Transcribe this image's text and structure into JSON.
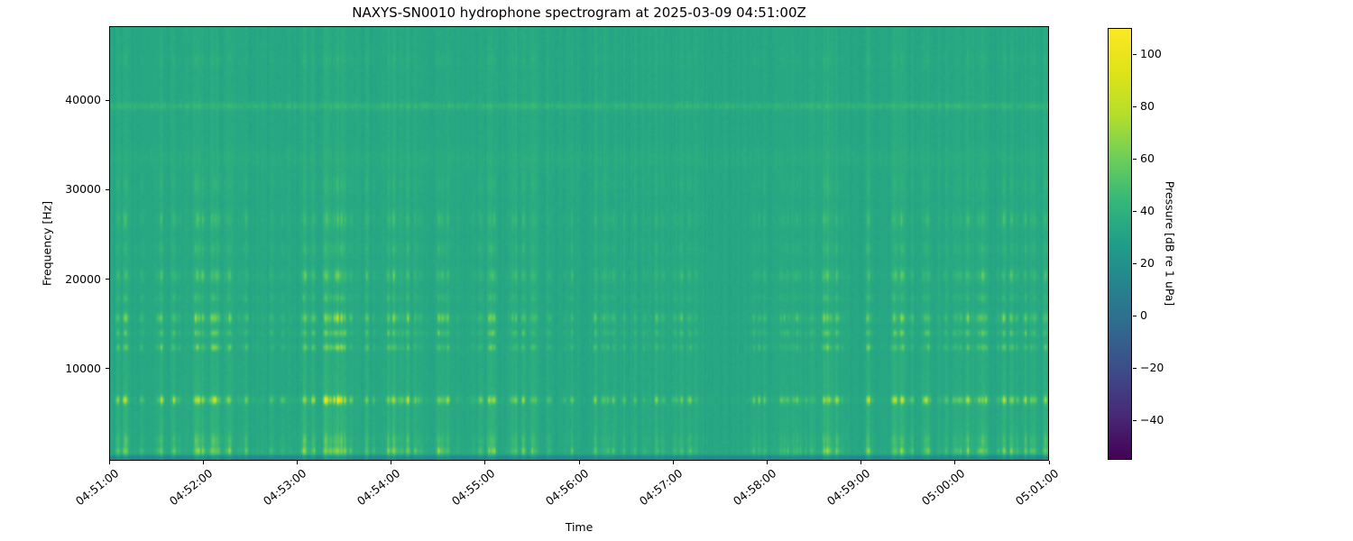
{
  "title": "NAXYS-SN0010 hydrophone spectrogram at 2025-03-09 04:51:00Z",
  "chart_data": {
    "type": "heatmap",
    "subtype": "spectrogram",
    "title": "NAXYS-SN0010 hydrophone spectrogram at 2025-03-09 04:51:00Z",
    "xlabel": "Time",
    "ylabel": "Frequency [Hz]",
    "colorbar_label": "Pressure [dB re 1 uPa]",
    "colormap": "viridis",
    "grid": false,
    "x_tick_labels": [
      "04:51:00",
      "04:52:00",
      "04:53:00",
      "04:54:00",
      "04:55:00",
      "04:56:00",
      "04:57:00",
      "04:58:00",
      "04:59:00",
      "05:00:00",
      "05:01:00"
    ],
    "x_tick_seconds": [
      0,
      60,
      120,
      180,
      240,
      300,
      360,
      420,
      480,
      540,
      600
    ],
    "x_range_seconds": [
      0,
      600
    ],
    "y_tick_values": [
      10000,
      20000,
      30000,
      40000
    ],
    "y_tick_labels": [
      "10000",
      "20000",
      "30000",
      "40000"
    ],
    "y_range_hz": [
      -270,
      48260
    ],
    "colorbar_tick_values": [
      100,
      80,
      60,
      40,
      20,
      0,
      -20,
      -40
    ],
    "colorbar_tick_labels": [
      "100",
      "80",
      "60",
      "40",
      "20",
      "0",
      "−20",
      "−40"
    ],
    "colorbar_range_db": [
      -55,
      110
    ],
    "background_level_db": 37,
    "content_summary": "Mostly uniform teal background (~37 dB) with many narrow vertical broadband transient striations; strong impulsive energy band near 6.5 kHz, moderate bands near 12.4, 13.9, 15.7 and 20.4 kHz, weak bands near 23.4, 26.7 and 30.6 kHz, a faint continuous tonal line near 39.4 kHz, a bright thin line near 0.8 kHz and a darker edge below ~0.4 kHz.",
    "render": {
      "seed": 20250309,
      "cols": 521,
      "rows": 241,
      "base_norm": 0.535,
      "noise": 0.016,
      "col_jitter": 0.012,
      "spike_prob": 0.55,
      "spike_pow": 2.2,
      "spike_amp": 1.3,
      "broadband": {
        "floor": 0.03,
        "amp": 0.085,
        "decay_hz": 9000
      },
      "bands_hz": [
        {
          "c": 6450,
          "s": 300,
          "g": 0.4
        },
        {
          "c": 12350,
          "s": 260,
          "g": 0.2
        },
        {
          "c": 13950,
          "s": 260,
          "g": 0.18
        },
        {
          "c": 15650,
          "s": 380,
          "g": 0.24
        },
        {
          "c": 17900,
          "s": 320,
          "g": 0.09
        },
        {
          "c": 20400,
          "s": 480,
          "g": 0.15
        },
        {
          "c": 23400,
          "s": 520,
          "g": 0.07
        },
        {
          "c": 26700,
          "s": 650,
          "g": 0.1
        },
        {
          "c": 30600,
          "s": 800,
          "g": 0.05
        },
        {
          "c": 44600,
          "s": 500,
          "g": 0.035
        },
        {
          "c": 750,
          "s": 260,
          "g": 0.22
        },
        {
          "c": 1900,
          "s": 500,
          "g": 0.09
        }
      ],
      "constant_lines_hz": [
        {
          "c": 39400,
          "s": 260,
          "a": 0.05
        },
        {
          "c": 33500,
          "s": 800,
          "a": 0.015
        }
      ],
      "bottom_dark": {
        "cut_hz": 420,
        "amp": 0.13
      },
      "viridis_stops": [
        [
          68,
          1,
          84
        ],
        [
          72,
          40,
          120
        ],
        [
          62,
          74,
          137
        ],
        [
          49,
          104,
          142
        ],
        [
          38,
          130,
          142
        ],
        [
          31,
          158,
          137
        ],
        [
          53,
          183,
          121
        ],
        [
          110,
          206,
          88
        ],
        [
          181,
          222,
          43
        ],
        [
          223,
          227,
          24
        ],
        [
          253,
          231,
          37
        ]
      ]
    }
  }
}
